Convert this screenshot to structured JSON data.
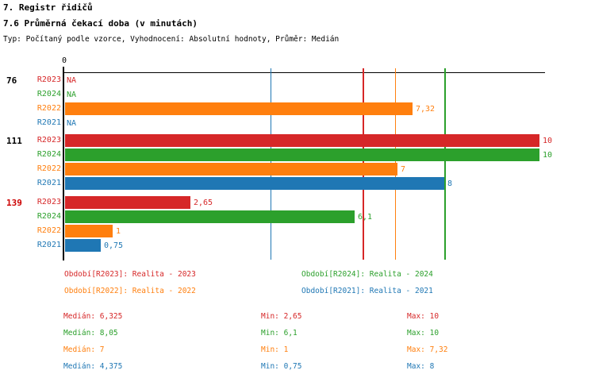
{
  "header": {
    "title": "7. Registr řidičů",
    "subtitle": "7.6 Průměrná čekací doba (v minutách)",
    "meta": "Typ: Počítaný podle vzorce, Vyhodnocení: Absolutní hodnoty, Průměr: Medián"
  },
  "colors": {
    "R2023": "#d62728",
    "R2024": "#2ca02c",
    "R2022": "#ff7f0e",
    "R2021": "#1f77b4",
    "axis": "#000000",
    "highlight_group_label": "#cc0000"
  },
  "chart_data": {
    "type": "bar",
    "orientation": "horizontal",
    "value_axis": {
      "origin_tick_label": "0",
      "min": 0,
      "max": 10,
      "grid": "median-marker-lines-only"
    },
    "series_order": [
      "R2023",
      "R2024",
      "R2022",
      "R2021"
    ],
    "groups": [
      {
        "label": "76",
        "label_color": "#000000",
        "bars": [
          {
            "series": "R2023",
            "value": null,
            "display": "NA"
          },
          {
            "series": "R2024",
            "value": null,
            "display": "NA"
          },
          {
            "series": "R2022",
            "value": 7.32,
            "display": "7,32"
          },
          {
            "series": "R2021",
            "value": null,
            "display": "NA"
          }
        ]
      },
      {
        "label": "111",
        "label_color": "#000000",
        "bars": [
          {
            "series": "R2023",
            "value": 10,
            "display": "10"
          },
          {
            "series": "R2024",
            "value": 10,
            "display": "10"
          },
          {
            "series": "R2022",
            "value": 7,
            "display": "7"
          },
          {
            "series": "R2021",
            "value": 8,
            "display": "8"
          }
        ]
      },
      {
        "label": "139",
        "label_color": "#cc0000",
        "bars": [
          {
            "series": "R2023",
            "value": 2.65,
            "display": "2,65"
          },
          {
            "series": "R2024",
            "value": 6.1,
            "display": "6,1"
          },
          {
            "series": "R2022",
            "value": 1,
            "display": "1"
          },
          {
            "series": "R2021",
            "value": 0.75,
            "display": "0,75"
          }
        ]
      }
    ],
    "median_lines": [
      {
        "series": "R2023",
        "value": 6.325
      },
      {
        "series": "R2024",
        "value": 8.05
      },
      {
        "series": "R2022",
        "value": 7
      },
      {
        "series": "R2021",
        "value": 4.375
      }
    ],
    "legend": [
      {
        "series": "R2023",
        "text": "Období[R2023]: Realita - 2023"
      },
      {
        "series": "R2024",
        "text": "Období[R2024]: Realita - 2024"
      },
      {
        "series": "R2022",
        "text": "Období[R2022]: Realita - 2022"
      },
      {
        "series": "R2021",
        "text": "Období[R2021]: Realita - 2021"
      }
    ],
    "stats": [
      {
        "series": "R2023",
        "median": "Medián: 6,325",
        "min": "Min: 2,65",
        "max": "Max: 10"
      },
      {
        "series": "R2024",
        "median": "Medián: 8,05",
        "min": "Min: 6,1",
        "max": "Max: 10"
      },
      {
        "series": "R2022",
        "median": "Medián: 7",
        "min": "Min: 1",
        "max": "Max: 7,32"
      },
      {
        "series": "R2021",
        "median": "Medián: 4,375",
        "min": "Min: 0,75",
        "max": "Max: 8"
      }
    ]
  }
}
